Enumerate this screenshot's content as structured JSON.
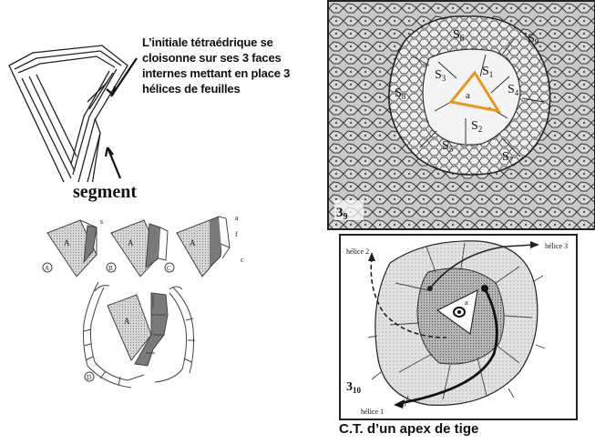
{
  "caption": {
    "line1": "L’initiale tétraédrique se",
    "line2": "cloisonne sur ses  3 faces",
    "line3": "internes mettant en place 3",
    "line4": "hélices de feuilles"
  },
  "segment_label": "segment",
  "small_diagrams": {
    "A_cell": "A",
    "label_s": "s",
    "label_a": "a",
    "label_f": "f",
    "label_c": "c",
    "panel_A": "A",
    "panel_B": "B",
    "panel_C": "C",
    "panel_D": "D"
  },
  "micrograph": {
    "labels": [
      "S6",
      "S9",
      "S3",
      "S1",
      "S4",
      "S8",
      "S2",
      "S5",
      "S7"
    ],
    "s6": "S",
    "s6_sub": "6",
    "s9": "S",
    "s9_sub": "9",
    "s3": "S",
    "s3_sub": "3",
    "s1": "S",
    "s1_sub": "1",
    "s4": "S",
    "s4_sub": "4",
    "s8": "S",
    "s8_sub": "8",
    "s2": "S",
    "s2_sub": "2",
    "s5": "S",
    "s5_sub": "5",
    "s7": "S",
    "s7_sub": "7",
    "center": "a",
    "figure_num": "3",
    "figure_sub": "9",
    "highlight_color": "#e8961e"
  },
  "helix_diagram": {
    "helice2": "hélice 2",
    "helice3": "hélice 3",
    "helice1": "hélice 1",
    "center": "a",
    "figure_num": "3",
    "figure_sub": "10"
  },
  "bottom_caption": "C.T. d’un apex de tige"
}
